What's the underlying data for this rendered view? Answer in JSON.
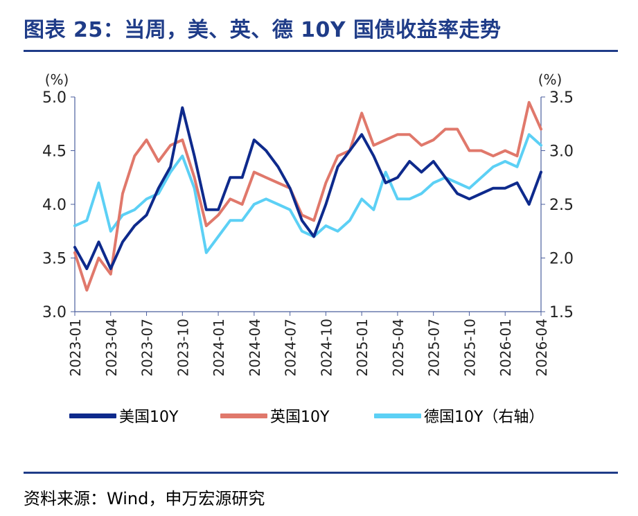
{
  "title": "图表 25：当周，美、英、德 10Y 国债收益率走势",
  "source": "资料来源：Wind，申万宏源研究",
  "chart_data": {
    "type": "line",
    "left_axis": {
      "unit_label": "(%)",
      "ylim": [
        3.0,
        5.0
      ],
      "ticks": [
        "3.0",
        "3.5",
        "4.0",
        "4.5",
        "5.0"
      ]
    },
    "right_axis": {
      "unit_label": "(%)",
      "ylim": [
        1.5,
        3.5
      ],
      "ticks": [
        "1.5",
        "2.0",
        "2.5",
        "3.0",
        "3.5"
      ]
    },
    "x_ticks": [
      "2023-01",
      "2023-04",
      "2023-07",
      "2023-10",
      "2024-01",
      "2024-04",
      "2024-07",
      "2024-10",
      "2025-01",
      "2025-04",
      "2025-07",
      "2025-10",
      "2026-01",
      "2026-04"
    ],
    "x_range": [
      "2023-01",
      "2026-04"
    ],
    "legend": {
      "placement": "bottom"
    },
    "colors": {
      "us": "#0e2a8c",
      "uk": "#e0786b",
      "de": "#5cd0f5",
      "axis": "#4a5d9c"
    },
    "series": [
      {
        "key": "us",
        "name": "美国10Y",
        "axis": "left",
        "x": [
          "2023-01",
          "2023-02",
          "2023-03",
          "2023-04",
          "2023-05",
          "2023-06",
          "2023-07",
          "2023-08",
          "2023-09",
          "2023-10",
          "2023-11",
          "2023-12",
          "2024-01",
          "2024-02",
          "2024-03",
          "2024-04",
          "2024-05",
          "2024-06",
          "2024-07",
          "2024-08",
          "2024-09",
          "2024-10",
          "2024-11",
          "2024-12",
          "2025-01",
          "2025-02",
          "2025-03",
          "2025-04",
          "2025-05",
          "2025-06",
          "2025-07",
          "2025-08",
          "2025-09",
          "2025-10",
          "2025-11",
          "2025-12",
          "2026-01",
          "2026-02",
          "2026-03",
          "2026-04"
        ],
        "values": [
          3.6,
          3.4,
          3.65,
          3.4,
          3.65,
          3.8,
          3.9,
          4.15,
          4.35,
          4.9,
          4.45,
          3.95,
          3.95,
          4.25,
          4.25,
          4.6,
          4.5,
          4.35,
          4.15,
          3.85,
          3.7,
          4.0,
          4.35,
          4.5,
          4.65,
          4.45,
          4.2,
          4.25,
          4.4,
          4.3,
          4.4,
          4.25,
          4.1,
          4.05,
          4.1,
          4.15,
          4.15,
          4.2,
          4.0,
          4.3
        ]
      },
      {
        "key": "uk",
        "name": "英国10Y",
        "axis": "left",
        "x": [
          "2023-01",
          "2023-02",
          "2023-03",
          "2023-04",
          "2023-05",
          "2023-06",
          "2023-07",
          "2023-08",
          "2023-09",
          "2023-10",
          "2023-11",
          "2023-12",
          "2024-01",
          "2024-02",
          "2024-03",
          "2024-04",
          "2024-05",
          "2024-06",
          "2024-07",
          "2024-08",
          "2024-09",
          "2024-10",
          "2024-11",
          "2024-12",
          "2025-01",
          "2025-02",
          "2025-03",
          "2025-04",
          "2025-05",
          "2025-06",
          "2025-07",
          "2025-08",
          "2025-09",
          "2025-10",
          "2025-11",
          "2025-12",
          "2026-01",
          "2026-02",
          "2026-03",
          "2026-04"
        ],
        "values": [
          3.55,
          3.2,
          3.5,
          3.35,
          4.1,
          4.45,
          4.6,
          4.4,
          4.55,
          4.6,
          4.25,
          3.8,
          3.9,
          4.05,
          4.0,
          4.3,
          4.25,
          4.2,
          4.15,
          3.9,
          3.85,
          4.2,
          4.45,
          4.5,
          4.85,
          4.55,
          4.6,
          4.65,
          4.65,
          4.55,
          4.6,
          4.7,
          4.7,
          4.5,
          4.5,
          4.45,
          4.5,
          4.45,
          4.95,
          4.7
        ]
      },
      {
        "key": "de",
        "name": "德国10Y（右轴）",
        "axis": "right",
        "x": [
          "2023-01",
          "2023-02",
          "2023-03",
          "2023-04",
          "2023-05",
          "2023-06",
          "2023-07",
          "2023-08",
          "2023-09",
          "2023-10",
          "2023-11",
          "2023-12",
          "2024-01",
          "2024-02",
          "2024-03",
          "2024-04",
          "2024-05",
          "2024-06",
          "2024-07",
          "2024-08",
          "2024-09",
          "2024-10",
          "2024-11",
          "2024-12",
          "2025-01",
          "2025-02",
          "2025-03",
          "2025-04",
          "2025-05",
          "2025-06",
          "2025-07",
          "2025-08",
          "2025-09",
          "2025-10",
          "2025-11",
          "2025-12",
          "2026-01",
          "2026-02",
          "2026-03",
          "2026-04"
        ],
        "values": [
          2.3,
          2.35,
          2.7,
          2.25,
          2.4,
          2.45,
          2.55,
          2.6,
          2.8,
          2.95,
          2.65,
          2.05,
          2.2,
          2.35,
          2.35,
          2.5,
          2.55,
          2.5,
          2.45,
          2.25,
          2.2,
          2.3,
          2.25,
          2.35,
          2.55,
          2.45,
          2.8,
          2.55,
          2.55,
          2.6,
          2.7,
          2.75,
          2.7,
          2.65,
          2.75,
          2.85,
          2.9,
          2.85,
          3.15,
          3.05
        ]
      }
    ]
  }
}
